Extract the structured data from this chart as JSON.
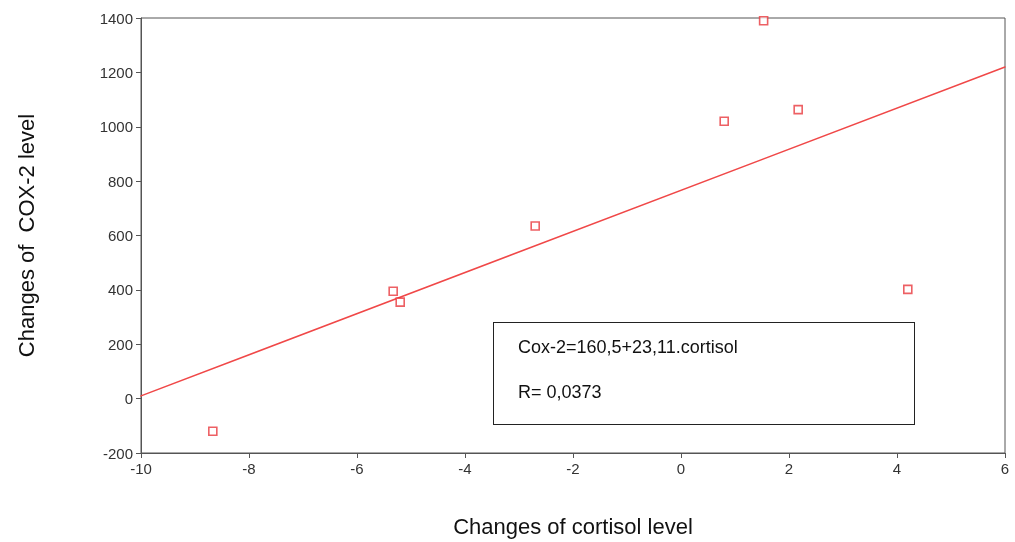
{
  "chart_data": {
    "type": "scatter",
    "xlabel": "Changes of cortisol level",
    "ylabel": "Changes of  COX-2 level",
    "annotations": [
      "Cox-2=160,5+23,11.cortisol",
      "R= 0,0373"
    ],
    "marker": "square",
    "grid": false,
    "xlim": [
      -10,
      6
    ],
    "xticks": [
      -10,
      -8,
      -6,
      -4,
      -2,
      0,
      2,
      4,
      6
    ],
    "ylim": [
      -200,
      1400
    ],
    "yticks": [
      -200,
      0,
      200,
      400,
      600,
      800,
      1000,
      1200,
      1400
    ],
    "series": [
      {
        "type": "scatter",
        "color": "#e8383d",
        "x": [
          -8.67,
          -5.33,
          -5.2,
          -2.7,
          0.8,
          1.53,
          2.17,
          4.2
        ],
        "values": [
          -120,
          395,
          355,
          635,
          1020,
          1390,
          1063,
          402
        ]
      },
      {
        "type": "line",
        "color": "#f04848",
        "marker": "none",
        "line_style": "solid",
        "x": [
          -10,
          6
        ],
        "values": [
          10,
          1220
        ]
      }
    ]
  }
}
